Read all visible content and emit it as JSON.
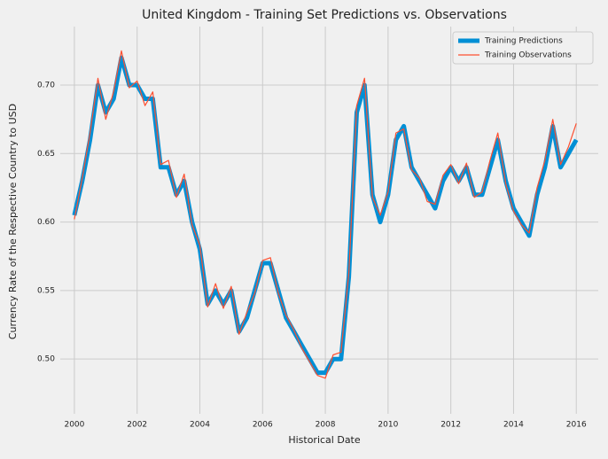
{
  "chart_data": {
    "type": "line",
    "title": "United Kingdom - Training Set Predictions vs. Observations",
    "x_label": "Historical Date",
    "y_label": "Currency Rate of the Respective Country to USD",
    "x": [
      2000.0,
      2000.25,
      2000.5,
      2000.75,
      2001.0,
      2001.25,
      2001.5,
      2001.75,
      2002.0,
      2002.25,
      2002.5,
      2002.75,
      2003.0,
      2003.25,
      2003.5,
      2003.75,
      2004.0,
      2004.25,
      2004.5,
      2004.75,
      2005.0,
      2005.25,
      2005.5,
      2005.75,
      2006.0,
      2006.25,
      2006.5,
      2006.75,
      2007.0,
      2007.25,
      2007.5,
      2007.75,
      2008.0,
      2008.25,
      2008.5,
      2008.75,
      2009.0,
      2009.25,
      2009.5,
      2009.75,
      2010.0,
      2010.25,
      2010.5,
      2010.75,
      2011.0,
      2011.25,
      2011.5,
      2011.75,
      2012.0,
      2012.25,
      2012.5,
      2012.75,
      2013.0,
      2013.25,
      2013.5,
      2013.75,
      2014.0,
      2014.25,
      2014.5,
      2014.75,
      2015.0,
      2015.25,
      2015.5,
      2015.75,
      2016.0
    ],
    "series": [
      {
        "name": "Training Predictions",
        "color": "#008fd5",
        "width": 5,
        "values": [
          0.605,
          0.63,
          0.66,
          0.7,
          0.68,
          0.69,
          0.72,
          0.7,
          0.7,
          0.69,
          0.69,
          0.64,
          0.64,
          0.62,
          0.63,
          0.6,
          0.58,
          0.54,
          0.55,
          0.54,
          0.55,
          0.52,
          0.53,
          0.55,
          0.57,
          0.57,
          0.55,
          0.53,
          0.52,
          0.51,
          0.5,
          0.49,
          0.49,
          0.5,
          0.5,
          0.56,
          0.68,
          0.7,
          0.62,
          0.6,
          0.62,
          0.66,
          0.67,
          0.64,
          0.63,
          0.62,
          0.61,
          0.63,
          0.64,
          0.63,
          0.64,
          0.62,
          0.62,
          0.64,
          0.66,
          0.63,
          0.61,
          0.6,
          0.59,
          0.62,
          0.64,
          0.67,
          0.64,
          0.65,
          0.66
        ]
      },
      {
        "name": "Training Observations",
        "color": "#fc4f30",
        "width": 1.2,
        "values": [
          0.602,
          0.632,
          0.665,
          0.705,
          0.675,
          0.695,
          0.725,
          0.698,
          0.703,
          0.685,
          0.695,
          0.642,
          0.645,
          0.618,
          0.635,
          0.598,
          0.583,
          0.538,
          0.555,
          0.537,
          0.553,
          0.518,
          0.534,
          0.548,
          0.572,
          0.574,
          0.548,
          0.532,
          0.521,
          0.508,
          0.498,
          0.488,
          0.486,
          0.503,
          0.505,
          0.563,
          0.685,
          0.705,
          0.618,
          0.605,
          0.622,
          0.665,
          0.668,
          0.638,
          0.632,
          0.615,
          0.613,
          0.634,
          0.642,
          0.628,
          0.643,
          0.618,
          0.622,
          0.645,
          0.665,
          0.628,
          0.608,
          0.598,
          0.592,
          0.625,
          0.645,
          0.675,
          0.642,
          0.655,
          0.672
        ]
      }
    ],
    "xlim": [
      1999.55,
      2016.7
    ],
    "ylim": [
      0.46,
      0.7427
    ],
    "xticks": [
      2000,
      2002,
      2004,
      2006,
      2008,
      2010,
      2012,
      2014,
      2016
    ],
    "yticks": [
      {
        "value": 0.5,
        "label": "0.50"
      },
      0.55,
      {
        "value": 0.6,
        "label": "0.60"
      },
      0.65,
      {
        "value": 0.7,
        "label": "0.70"
      }
    ],
    "grid": true,
    "legend": "upper right"
  }
}
